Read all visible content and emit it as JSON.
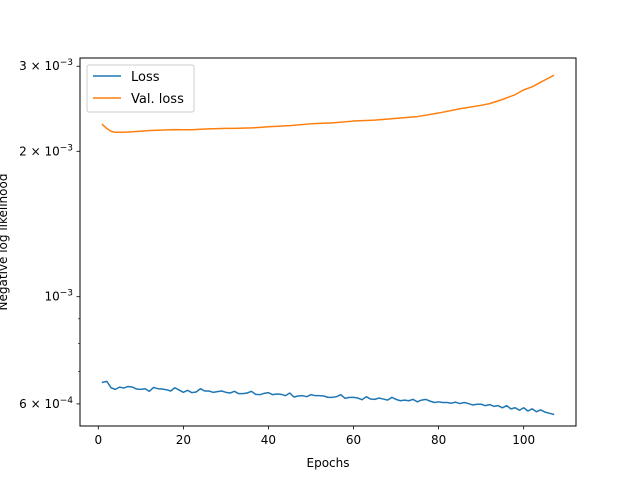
{
  "chart_data": {
    "type": "line",
    "title": "",
    "xlabel": "Epochs",
    "ylabel": "Negative log likelihood",
    "x_ticks": [
      0,
      20,
      40,
      60,
      80,
      100
    ],
    "x_tick_labels": [
      "0",
      "20",
      "40",
      "60",
      "80",
      "100"
    ],
    "y_ticks": [
      0.0006,
      0.001,
      0.002,
      0.003
    ],
    "y_tick_labels": [
      {
        "base": "6 × 10",
        "exp": "−4"
      },
      {
        "base": "10",
        "exp": "−3"
      },
      {
        "base": "2 × 10",
        "exp": "−3"
      },
      {
        "base": "3 × 10",
        "exp": "−3"
      }
    ],
    "y_minor_ticks": [
      0.0007,
      0.0008,
      0.0009
    ],
    "xlim": [
      -4.3,
      112.3
    ],
    "ylim": [
      0.00054,
      0.00312
    ],
    "yscale": "log",
    "grid": false,
    "legend_position": "upper-left",
    "series": [
      {
        "name": "Loss",
        "color": "#1f77b4",
        "x": [
          1,
          2,
          3,
          4,
          5,
          6,
          7,
          8,
          9,
          10,
          11,
          12,
          13,
          14,
          15,
          16,
          17,
          18,
          19,
          20,
          21,
          22,
          23,
          24,
          25,
          26,
          27,
          28,
          29,
          30,
          31,
          32,
          33,
          34,
          35,
          36,
          37,
          38,
          39,
          40,
          41,
          42,
          43,
          44,
          45,
          46,
          47,
          48,
          49,
          50,
          51,
          52,
          53,
          54,
          55,
          56,
          57,
          58,
          59,
          60,
          61,
          62,
          63,
          64,
          65,
          66,
          67,
          68,
          69,
          70,
          71,
          72,
          73,
          74,
          75,
          76,
          77,
          78,
          79,
          80,
          81,
          82,
          83,
          84,
          85,
          86,
          87,
          88,
          89,
          90,
          91,
          92,
          93,
          94,
          95,
          96,
          97,
          98,
          99,
          100,
          101,
          102,
          103,
          104,
          105,
          106,
          107
        ],
        "values": [
          0.000665,
          0.000668,
          0.000648,
          0.000643,
          0.00065,
          0.000647,
          0.000652,
          0.00065,
          0.000644,
          0.000643,
          0.000645,
          0.000637,
          0.000649,
          0.000645,
          0.000644,
          0.000642,
          0.000638,
          0.000648,
          0.000641,
          0.000634,
          0.00064,
          0.000633,
          0.000635,
          0.000645,
          0.000638,
          0.000638,
          0.000634,
          0.000636,
          0.000638,
          0.000634,
          0.000632,
          0.000637,
          0.00063,
          0.00063,
          0.000632,
          0.000637,
          0.000628,
          0.000627,
          0.000631,
          0.000633,
          0.000627,
          0.000629,
          0.000628,
          0.000624,
          0.000632,
          0.00062,
          0.000623,
          0.000624,
          0.000621,
          0.000627,
          0.000624,
          0.000624,
          0.000623,
          0.000619,
          0.000619,
          0.000621,
          0.000627,
          0.000616,
          0.000619,
          0.000619,
          0.000617,
          0.000612,
          0.000621,
          0.000614,
          0.000613,
          0.000617,
          0.000614,
          0.000611,
          0.000619,
          0.000613,
          0.000609,
          0.000611,
          0.000609,
          0.000613,
          0.000606,
          0.000611,
          0.000613,
          0.000608,
          0.000604,
          0.000606,
          0.000604,
          0.000604,
          0.000602,
          0.000605,
          0.000601,
          0.000604,
          0.000601,
          0.000597,
          0.000599,
          0.000599,
          0.000595,
          0.000598,
          0.000593,
          0.000595,
          0.000589,
          0.000595,
          0.000586,
          0.000589,
          0.000582,
          0.000589,
          0.00058,
          0.000586,
          0.000578,
          0.000583,
          0.000577,
          0.000574,
          0.000571
        ]
      },
      {
        "name": "Val. loss",
        "color": "#ff7f0e",
        "x": [
          1,
          2,
          3,
          4,
          5,
          6,
          8,
          10,
          12,
          14,
          16,
          18,
          20,
          22,
          24,
          26,
          28,
          30,
          32,
          34,
          36,
          38,
          40,
          45,
          50,
          55,
          60,
          65,
          70,
          75,
          80,
          85,
          90,
          92,
          95,
          98,
          100,
          102,
          104,
          106,
          107
        ],
        "values": [
          0.00227,
          0.00223,
          0.0022,
          0.00219,
          0.00219,
          0.00219,
          0.002195,
          0.002201,
          0.002208,
          0.002211,
          0.002215,
          0.002218,
          0.002217,
          0.002217,
          0.002221,
          0.002225,
          0.002228,
          0.002231,
          0.002231,
          0.002233,
          0.002236,
          0.002242,
          0.002248,
          0.00226,
          0.00228,
          0.00229,
          0.00231,
          0.00232,
          0.00234,
          0.00236,
          0.0024,
          0.00245,
          0.00249,
          0.00251,
          0.00256,
          0.00262,
          0.00268,
          0.00272,
          0.00278,
          0.00284,
          0.00287
        ]
      }
    ]
  }
}
